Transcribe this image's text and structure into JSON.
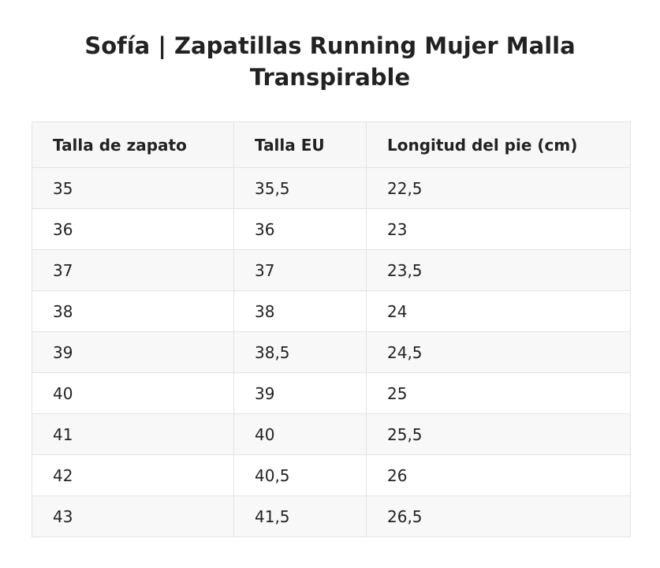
{
  "title": "Sofía | Zapatillas Running Mujer Malla Transpirable",
  "table": {
    "headers": [
      "Talla de zapato",
      "Talla EU",
      "Longitud del pie (cm)"
    ],
    "rows": [
      [
        "35",
        "35,5",
        "22,5"
      ],
      [
        "36",
        "36",
        "23"
      ],
      [
        "37",
        "37",
        "23,5"
      ],
      [
        "38",
        "38",
        "24"
      ],
      [
        "39",
        "38,5",
        "24,5"
      ],
      [
        "40",
        "39",
        "25"
      ],
      [
        "41",
        "40",
        "25,5"
      ],
      [
        "42",
        "40,5",
        "26"
      ],
      [
        "43",
        "41,5",
        "26,5"
      ]
    ]
  },
  "colors": {
    "text": "#222222",
    "header_background": "#f7f7f7",
    "stripe_background": "#f8f8f8",
    "border": "#e3e3e3"
  }
}
